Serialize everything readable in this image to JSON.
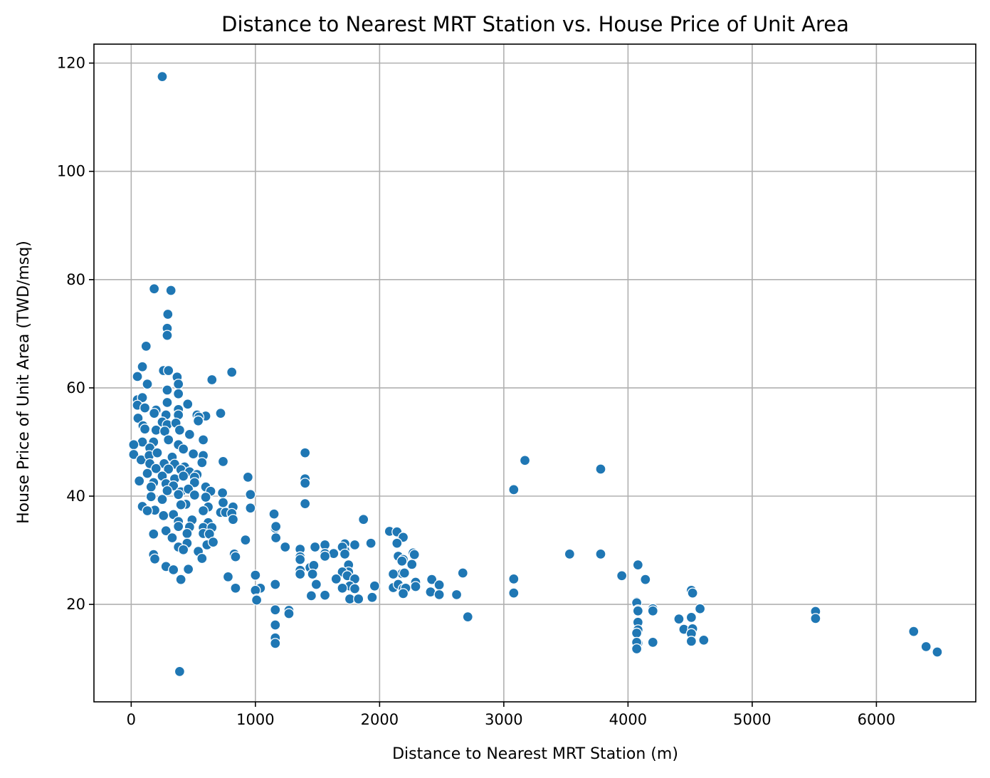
{
  "chart_data": {
    "type": "scatter",
    "title": "Distance to Nearest MRT Station vs. House Price of Unit Area",
    "xlabel": "Distance to Nearest MRT Station (m)",
    "ylabel": "House Price of Unit Area (TWD/msq)",
    "xlim": [
      -300,
      6800
    ],
    "ylim": [
      2,
      123.5
    ],
    "xticks": [
      0,
      1000,
      2000,
      3000,
      4000,
      5000,
      6000
    ],
    "yticks": [
      20,
      40,
      60,
      80,
      100,
      120
    ],
    "xtick_labels": [
      "0",
      "1000",
      "2000",
      "3000",
      "4000",
      "5000",
      "6000"
    ],
    "ytick_labels": [
      "20",
      "40",
      "60",
      "80",
      "100",
      "120"
    ],
    "grid": true,
    "legend": "none",
    "color": "#1f77b4",
    "points": [
      [
        250,
        117.5
      ],
      [
        390,
        7.6
      ],
      [
        185,
        78.3
      ],
      [
        320,
        78.0
      ],
      [
        295,
        73.6
      ],
      [
        290,
        71.0
      ],
      [
        290,
        69.7
      ],
      [
        120,
        67.7
      ],
      [
        260,
        63.2
      ],
      [
        300,
        63.2
      ],
      [
        90,
        63.9
      ],
      [
        50,
        62.1
      ],
      [
        370,
        62.0
      ],
      [
        650,
        61.5
      ],
      [
        810,
        62.9
      ],
      [
        380,
        60.7
      ],
      [
        130,
        60.7
      ],
      [
        290,
        59.6
      ],
      [
        380,
        58.9
      ],
      [
        50,
        57.8
      ],
      [
        90,
        58.2
      ],
      [
        290,
        57.3
      ],
      [
        455,
        57.0
      ],
      [
        600,
        54.8
      ],
      [
        720,
        55.3
      ],
      [
        530,
        55.0
      ],
      [
        50,
        56.8
      ],
      [
        110,
        56.3
      ],
      [
        200,
        55.9
      ],
      [
        380,
        56.0
      ],
      [
        280,
        55.0
      ],
      [
        55,
        54.4
      ],
      [
        185,
        55.3
      ],
      [
        380,
        55.0
      ],
      [
        545,
        54.6
      ],
      [
        540,
        53.9
      ],
      [
        95,
        53.0
      ],
      [
        250,
        53.7
      ],
      [
        290,
        53.2
      ],
      [
        360,
        53.5
      ],
      [
        110,
        52.4
      ],
      [
        200,
        52.2
      ],
      [
        270,
        52.0
      ],
      [
        390,
        52.2
      ],
      [
        470,
        51.4
      ],
      [
        580,
        50.4
      ],
      [
        90,
        50.0
      ],
      [
        180,
        50.0
      ],
      [
        300,
        50.4
      ],
      [
        380,
        49.5
      ],
      [
        20,
        49.5
      ],
      [
        150,
        48.9
      ],
      [
        420,
        48.7
      ],
      [
        500,
        47.8
      ],
      [
        20,
        47.7
      ],
      [
        1400,
        48.0
      ],
      [
        80,
        46.7
      ],
      [
        145,
        47.5
      ],
      [
        210,
        48.0
      ],
      [
        330,
        47.2
      ],
      [
        580,
        47.5
      ],
      [
        740,
        46.4
      ],
      [
        150,
        46.0
      ],
      [
        265,
        46.0
      ],
      [
        350,
        45.9
      ],
      [
        430,
        45.4
      ],
      [
        570,
        46.2
      ],
      [
        3170,
        46.6
      ],
      [
        3780,
        45.0
      ],
      [
        200,
        45.1
      ],
      [
        300,
        45.0
      ],
      [
        400,
        44.9
      ],
      [
        470,
        44.5
      ],
      [
        530,
        44.0
      ],
      [
        130,
        44.2
      ],
      [
        250,
        43.7
      ],
      [
        350,
        43.2
      ],
      [
        420,
        43.7
      ],
      [
        510,
        43.5
      ],
      [
        940,
        43.5
      ],
      [
        1400,
        43.2
      ],
      [
        65,
        42.8
      ],
      [
        180,
        42.5
      ],
      [
        280,
        42.3
      ],
      [
        340,
        41.9
      ],
      [
        510,
        42.5
      ],
      [
        1400,
        42.4
      ],
      [
        160,
        41.7
      ],
      [
        290,
        41.0
      ],
      [
        400,
        40.8
      ],
      [
        460,
        41.3
      ],
      [
        600,
        41.7
      ],
      [
        640,
        40.9
      ],
      [
        3080,
        41.2
      ],
      [
        735,
        40.6
      ],
      [
        960,
        40.3
      ],
      [
        510,
        40.2
      ],
      [
        160,
        39.9
      ],
      [
        250,
        39.4
      ],
      [
        380,
        40.3
      ],
      [
        600,
        39.8
      ],
      [
        440,
        38.5
      ],
      [
        620,
        38.0
      ],
      [
        400,
        38.4
      ],
      [
        740,
        38.8
      ],
      [
        820,
        38.0
      ],
      [
        1400,
        38.6
      ],
      [
        90,
        38.1
      ],
      [
        190,
        37.4
      ],
      [
        130,
        37.3
      ],
      [
        260,
        36.4
      ],
      [
        340,
        36.6
      ],
      [
        580,
        37.3
      ],
      [
        720,
        37.0
      ],
      [
        760,
        37.0
      ],
      [
        810,
        36.8
      ],
      [
        960,
        37.8
      ],
      [
        1150,
        36.7
      ],
      [
        380,
        35.3
      ],
      [
        490,
        35.6
      ],
      [
        620,
        35.1
      ],
      [
        820,
        35.7
      ],
      [
        1870,
        35.7
      ],
      [
        380,
        34.4
      ],
      [
        470,
        34.3
      ],
      [
        580,
        34.2
      ],
      [
        650,
        34.2
      ],
      [
        1160,
        34.1
      ],
      [
        1165,
        34.4
      ],
      [
        280,
        33.6
      ],
      [
        450,
        33.1
      ],
      [
        580,
        33.1
      ],
      [
        630,
        33.0
      ],
      [
        180,
        33.0
      ],
      [
        330,
        32.3
      ],
      [
        2080,
        33.5
      ],
      [
        2140,
        33.4
      ],
      [
        2190,
        32.4
      ],
      [
        2140,
        31.3
      ],
      [
        920,
        31.9
      ],
      [
        1165,
        32.3
      ],
      [
        450,
        31.3
      ],
      [
        610,
        31.0
      ],
      [
        660,
        31.5
      ],
      [
        1560,
        31.0
      ],
      [
        1720,
        31.2
      ],
      [
        1930,
        31.3
      ],
      [
        1800,
        31.0
      ],
      [
        380,
        30.6
      ],
      [
        420,
        30.1
      ],
      [
        1240,
        30.6
      ],
      [
        1360,
        30.2
      ],
      [
        1480,
        30.6
      ],
      [
        1720,
        30.0
      ],
      [
        1700,
        30.6
      ],
      [
        540,
        29.8
      ],
      [
        830,
        29.3
      ],
      [
        1560,
        29.4
      ],
      [
        1630,
        29.4
      ],
      [
        1720,
        29.3
      ],
      [
        2270,
        29.5
      ],
      [
        2280,
        29.2
      ],
      [
        3530,
        29.3
      ],
      [
        3780,
        29.3
      ],
      [
        180,
        29.2
      ],
      [
        190,
        28.4
      ],
      [
        570,
        28.5
      ],
      [
        840,
        28.8
      ],
      [
        1360,
        28.8
      ],
      [
        1360,
        28.3
      ],
      [
        1560,
        28.9
      ],
      [
        2150,
        28.9
      ],
      [
        2190,
        28.3
      ],
      [
        2180,
        28.0
      ],
      [
        4080,
        27.3
      ],
      [
        280,
        27.0
      ],
      [
        340,
        26.4
      ],
      [
        460,
        26.5
      ],
      [
        1360,
        26.3
      ],
      [
        1360,
        25.6
      ],
      [
        1440,
        26.8
      ],
      [
        1470,
        27.2
      ],
      [
        1750,
        27.3
      ],
      [
        1750,
        26.0
      ],
      [
        1700,
        26.0
      ],
      [
        1740,
        25.3
      ],
      [
        2180,
        25.7
      ],
      [
        2200,
        25.8
      ],
      [
        2260,
        27.4
      ],
      [
        2110,
        25.6
      ],
      [
        2670,
        25.8
      ],
      [
        780,
        25.1
      ],
      [
        1000,
        25.4
      ],
      [
        1460,
        25.6
      ],
      [
        1650,
        24.7
      ],
      [
        1800,
        24.7
      ],
      [
        2420,
        24.6
      ],
      [
        2290,
        24.1
      ],
      [
        3080,
        24.7
      ],
      [
        3950,
        25.3
      ],
      [
        4140,
        24.6
      ],
      [
        400,
        24.6
      ],
      [
        1160,
        23.7
      ],
      [
        1490,
        23.7
      ],
      [
        1760,
        23.4
      ],
      [
        1960,
        23.4
      ],
      [
        2110,
        23.1
      ],
      [
        2150,
        23.7
      ],
      [
        2290,
        23.3
      ],
      [
        2480,
        23.6
      ],
      [
        840,
        23.0
      ],
      [
        1040,
        23.0
      ],
      [
        1700,
        23.0
      ],
      [
        1800,
        22.9
      ],
      [
        2190,
        22.9
      ],
      [
        2210,
        23.0
      ],
      [
        1000,
        22.6
      ],
      [
        1450,
        21.6
      ],
      [
        1560,
        21.7
      ],
      [
        1760,
        21.0
      ],
      [
        1830,
        21.0
      ],
      [
        1940,
        21.3
      ],
      [
        2190,
        22.0
      ],
      [
        2410,
        22.3
      ],
      [
        2480,
        21.8
      ],
      [
        2620,
        21.8
      ],
      [
        3080,
        22.1
      ],
      [
        4510,
        22.6
      ],
      [
        4520,
        22.1
      ],
      [
        1010,
        21.0
      ],
      [
        1010,
        20.8
      ],
      [
        4070,
        20.5
      ],
      [
        4070,
        20.3
      ],
      [
        4080,
        19.0
      ],
      [
        4080,
        18.8
      ],
      [
        4200,
        19.2
      ],
      [
        4200,
        18.8
      ],
      [
        4580,
        19.2
      ],
      [
        1160,
        19.0
      ],
      [
        1270,
        18.9
      ],
      [
        1270,
        18.3
      ],
      [
        2710,
        17.7
      ],
      [
        4410,
        17.3
      ],
      [
        4510,
        17.6
      ],
      [
        5510,
        18.7
      ],
      [
        5510,
        17.4
      ],
      [
        4080,
        16.7
      ],
      [
        1160,
        16.2
      ],
      [
        4450,
        15.4
      ],
      [
        4520,
        15.5
      ],
      [
        4080,
        15.3
      ],
      [
        4070,
        14.7
      ],
      [
        4510,
        14.6
      ],
      [
        6300,
        15.0
      ],
      [
        1160,
        13.8
      ],
      [
        1160,
        12.8
      ],
      [
        4080,
        12.9
      ],
      [
        4070,
        13.0
      ],
      [
        4200,
        13.0
      ],
      [
        4510,
        13.2
      ],
      [
        4610,
        13.4
      ],
      [
        4070,
        11.8
      ],
      [
        6400,
        12.2
      ],
      [
        6490,
        11.2
      ]
    ]
  }
}
